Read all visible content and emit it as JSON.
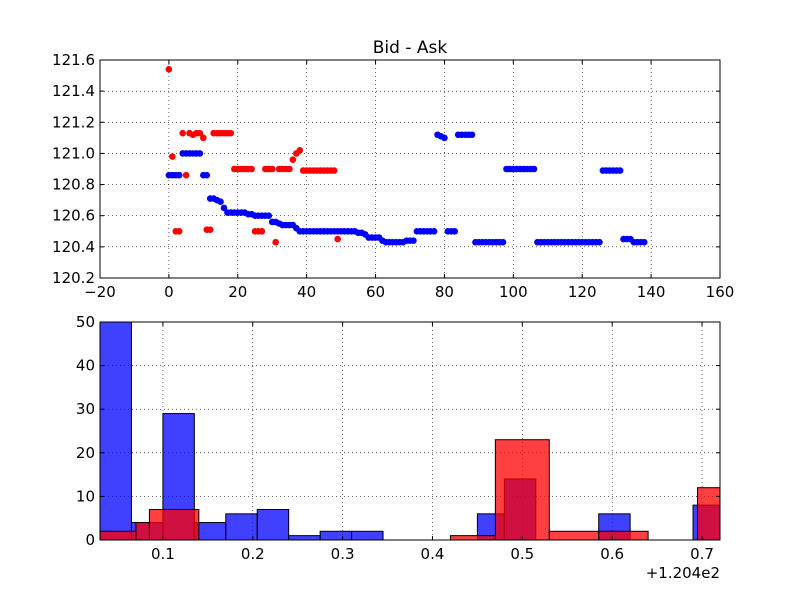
{
  "chart_data": [
    {
      "type": "scatter",
      "title": "Bid - Ask",
      "xlabel": "",
      "ylabel": "",
      "xlim": [
        -20,
        160
      ],
      "ylim": [
        120.2,
        121.6
      ],
      "xticks": [
        -20,
        0,
        20,
        40,
        60,
        80,
        100,
        120,
        140,
        160
      ],
      "yticks": [
        120.2,
        120.4,
        120.6,
        120.8,
        121.0,
        121.2,
        121.4,
        121.6
      ],
      "xtick_labels": [
        "−20",
        "0",
        "20",
        "40",
        "60",
        "80",
        "100",
        "120",
        "140",
        "160"
      ],
      "ytick_labels": [
        "120.2",
        "120.4",
        "120.6",
        "120.8",
        "121.0",
        "121.2",
        "121.4",
        "121.6"
      ],
      "grid": true,
      "series": [
        {
          "name": "blue",
          "color": "#0000ff",
          "points": [
            [
              0,
              120.86
            ],
            [
              1,
              120.86
            ],
            [
              2,
              120.86
            ],
            [
              3,
              120.86
            ],
            [
              4,
              121.0
            ],
            [
              5,
              121.0
            ],
            [
              6,
              121.0
            ],
            [
              7,
              121.0
            ],
            [
              8,
              121.0
            ],
            [
              9,
              121.0
            ],
            [
              10,
              120.86
            ],
            [
              11,
              120.86
            ],
            [
              12,
              120.71
            ],
            [
              13,
              120.71
            ],
            [
              14,
              120.7
            ],
            [
              15,
              120.69
            ],
            [
              16,
              120.65
            ],
            [
              17,
              120.62
            ],
            [
              18,
              120.62
            ],
            [
              19,
              120.62
            ],
            [
              20,
              120.62
            ],
            [
              21,
              120.62
            ],
            [
              22,
              120.62
            ],
            [
              23,
              120.61
            ],
            [
              24,
              120.61
            ],
            [
              25,
              120.6
            ],
            [
              26,
              120.6
            ],
            [
              27,
              120.6
            ],
            [
              28,
              120.6
            ],
            [
              29,
              120.6
            ],
            [
              30,
              120.56
            ],
            [
              31,
              120.56
            ],
            [
              32,
              120.55
            ],
            [
              33,
              120.54
            ],
            [
              34,
              120.54
            ],
            [
              35,
              120.54
            ],
            [
              36,
              120.54
            ],
            [
              37,
              120.52
            ],
            [
              38,
              120.5
            ],
            [
              39,
              120.5
            ],
            [
              40,
              120.5
            ],
            [
              41,
              120.5
            ],
            [
              42,
              120.5
            ],
            [
              43,
              120.5
            ],
            [
              44,
              120.5
            ],
            [
              45,
              120.5
            ],
            [
              46,
              120.5
            ],
            [
              47,
              120.5
            ],
            [
              48,
              120.5
            ],
            [
              49,
              120.5
            ],
            [
              50,
              120.5
            ],
            [
              51,
              120.5
            ],
            [
              52,
              120.5
            ],
            [
              53,
              120.5
            ],
            [
              54,
              120.5
            ],
            [
              55,
              120.49
            ],
            [
              56,
              120.49
            ],
            [
              57,
              120.48
            ],
            [
              58,
              120.46
            ],
            [
              59,
              120.46
            ],
            [
              60,
              120.46
            ],
            [
              61,
              120.46
            ],
            [
              62,
              120.44
            ],
            [
              63,
              120.43
            ],
            [
              64,
              120.43
            ],
            [
              65,
              120.43
            ],
            [
              66,
              120.43
            ],
            [
              67,
              120.43
            ],
            [
              68,
              120.43
            ],
            [
              69,
              120.44
            ],
            [
              70,
              120.44
            ],
            [
              71,
              120.44
            ],
            [
              72,
              120.5
            ],
            [
              73,
              120.5
            ],
            [
              74,
              120.5
            ],
            [
              75,
              120.5
            ],
            [
              76,
              120.5
            ],
            [
              77,
              120.5
            ],
            [
              78,
              121.12
            ],
            [
              79,
              121.11
            ],
            [
              80,
              121.1
            ],
            [
              81,
              120.5
            ],
            [
              82,
              120.5
            ],
            [
              83,
              120.5
            ],
            [
              84,
              121.12
            ],
            [
              85,
              121.12
            ],
            [
              86,
              121.12
            ],
            [
              87,
              121.12
            ],
            [
              88,
              121.12
            ],
            [
              89,
              120.43
            ],
            [
              90,
              120.43
            ],
            [
              91,
              120.43
            ],
            [
              92,
              120.43
            ],
            [
              93,
              120.43
            ],
            [
              94,
              120.43
            ],
            [
              95,
              120.43
            ],
            [
              96,
              120.43
            ],
            [
              97,
              120.43
            ],
            [
              98,
              120.9
            ],
            [
              99,
              120.9
            ],
            [
              100,
              120.9
            ],
            [
              101,
              120.9
            ],
            [
              102,
              120.9
            ],
            [
              103,
              120.9
            ],
            [
              104,
              120.9
            ],
            [
              105,
              120.9
            ],
            [
              106,
              120.9
            ],
            [
              107,
              120.43
            ],
            [
              108,
              120.43
            ],
            [
              109,
              120.43
            ],
            [
              110,
              120.43
            ],
            [
              111,
              120.43
            ],
            [
              112,
              120.43
            ],
            [
              113,
              120.43
            ],
            [
              114,
              120.43
            ],
            [
              115,
              120.43
            ],
            [
              116,
              120.43
            ],
            [
              117,
              120.43
            ],
            [
              118,
              120.43
            ],
            [
              119,
              120.43
            ],
            [
              120,
              120.43
            ],
            [
              121,
              120.43
            ],
            [
              122,
              120.43
            ],
            [
              123,
              120.43
            ],
            [
              124,
              120.43
            ],
            [
              125,
              120.43
            ],
            [
              126,
              120.89
            ],
            [
              127,
              120.89
            ],
            [
              128,
              120.89
            ],
            [
              129,
              120.89
            ],
            [
              130,
              120.89
            ],
            [
              131,
              120.89
            ],
            [
              132,
              120.45
            ],
            [
              133,
              120.45
            ],
            [
              134,
              120.45
            ],
            [
              135,
              120.43
            ],
            [
              136,
              120.43
            ],
            [
              137,
              120.43
            ],
            [
              138,
              120.43
            ]
          ]
        },
        {
          "name": "red",
          "color": "#ff0000",
          "points": [
            [
              0,
              121.54
            ],
            [
              1,
              120.98
            ],
            [
              2,
              120.5
            ],
            [
              3,
              120.5
            ],
            [
              4,
              121.13
            ],
            [
              5,
              120.86
            ],
            [
              6,
              121.13
            ],
            [
              7,
              121.12
            ],
            [
              8,
              121.13
            ],
            [
              9,
              121.13
            ],
            [
              10,
              121.1
            ],
            [
              11,
              120.51
            ],
            [
              12,
              120.51
            ],
            [
              13,
              121.13
            ],
            [
              14,
              121.13
            ],
            [
              15,
              121.13
            ],
            [
              16,
              121.13
            ],
            [
              17,
              121.13
            ],
            [
              18,
              121.13
            ],
            [
              19,
              120.9
            ],
            [
              20,
              120.9
            ],
            [
              21,
              120.9
            ],
            [
              22,
              120.9
            ],
            [
              23,
              120.9
            ],
            [
              24,
              120.9
            ],
            [
              25,
              120.5
            ],
            [
              26,
              120.5
            ],
            [
              27,
              120.5
            ],
            [
              28,
              120.9
            ],
            [
              29,
              120.9
            ],
            [
              30,
              120.9
            ],
            [
              31,
              120.43
            ],
            [
              32,
              120.9
            ],
            [
              33,
              120.9
            ],
            [
              34,
              120.9
            ],
            [
              35,
              120.9
            ],
            [
              36,
              120.96
            ],
            [
              37,
              121.0
            ],
            [
              38,
              121.02
            ],
            [
              39,
              120.89
            ],
            [
              40,
              120.89
            ],
            [
              41,
              120.89
            ],
            [
              42,
              120.89
            ],
            [
              43,
              120.89
            ],
            [
              44,
              120.89
            ],
            [
              45,
              120.89
            ],
            [
              46,
              120.89
            ],
            [
              47,
              120.89
            ],
            [
              48,
              120.89
            ],
            [
              49,
              120.45
            ]
          ]
        }
      ]
    },
    {
      "type": "histogram",
      "title": "",
      "xlabel": "",
      "ylabel": "",
      "offset_label": "+1.204e2",
      "xlim": [
        0.03,
        0.72
      ],
      "ylim": [
        0,
        50
      ],
      "xticks": [
        0.1,
        0.2,
        0.3,
        0.4,
        0.5,
        0.6,
        0.7
      ],
      "yticks": [
        0,
        10,
        20,
        30,
        40,
        50
      ],
      "xtick_labels": [
        "0.1",
        "0.2",
        "0.3",
        "0.4",
        "0.5",
        "0.6",
        "0.7"
      ],
      "ytick_labels": [
        "0",
        "10",
        "20",
        "30",
        "40",
        "50"
      ],
      "grid": true,
      "series": [
        {
          "name": "blue",
          "color": "#0000ff",
          "opacity": 0.75,
          "bins": [
            [
              0.03,
              0.065,
              50
            ],
            [
              0.065,
              0.1,
              4
            ],
            [
              0.1,
              0.135,
              29
            ],
            [
              0.135,
              0.17,
              4
            ],
            [
              0.17,
              0.205,
              6
            ],
            [
              0.205,
              0.24,
              7
            ],
            [
              0.24,
              0.275,
              1
            ],
            [
              0.275,
              0.31,
              2
            ],
            [
              0.31,
              0.345,
              2
            ],
            [
              0.345,
              0.38,
              0
            ],
            [
              0.38,
              0.415,
              0
            ],
            [
              0.415,
              0.45,
              0
            ],
            [
              0.45,
              0.48,
              6
            ],
            [
              0.48,
              0.515,
              14
            ],
            [
              0.515,
              0.55,
              0
            ],
            [
              0.55,
              0.585,
              0
            ],
            [
              0.585,
              0.62,
              6
            ],
            [
              0.62,
              0.655,
              0
            ],
            [
              0.655,
              0.69,
              0
            ],
            [
              0.69,
              0.72,
              8
            ]
          ]
        },
        {
          "name": "red",
          "color": "#ff0000",
          "opacity": 0.75,
          "bins": [
            [
              0.03,
              0.07,
              2
            ],
            [
              0.07,
              0.085,
              4
            ],
            [
              0.085,
              0.14,
              7
            ],
            [
              0.14,
              0.42,
              0
            ],
            [
              0.42,
              0.47,
              1
            ],
            [
              0.47,
              0.53,
              23
            ],
            [
              0.53,
              0.585,
              2
            ],
            [
              0.585,
              0.64,
              2
            ],
            [
              0.64,
              0.695,
              0
            ],
            [
              0.695,
              0.72,
              12
            ]
          ]
        }
      ]
    }
  ]
}
